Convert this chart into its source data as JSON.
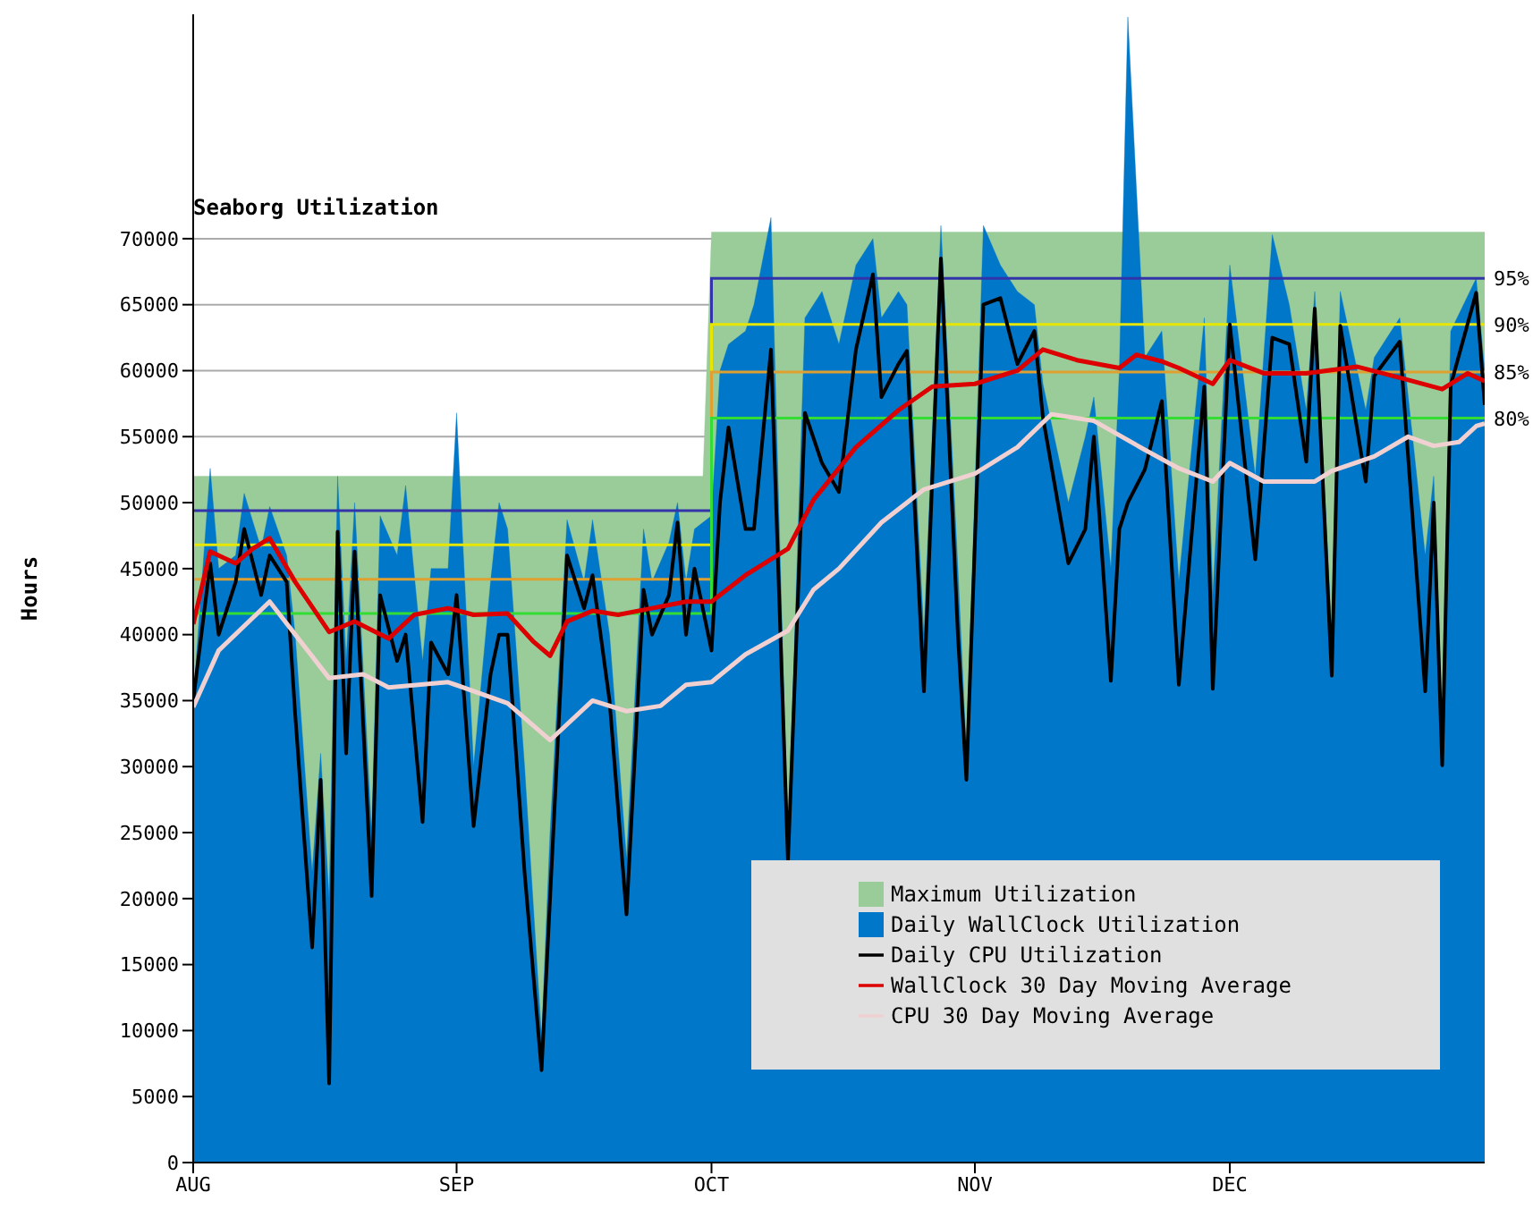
{
  "chart_data": {
    "type": "line",
    "title": "Seaborg Utilization",
    "ylabel": "Hours",
    "x": [
      "--08-01",
      "--08-03",
      "--08-04",
      "--08-06",
      "--08-07",
      "--08-09",
      "--08-10",
      "--08-12",
      "--08-13",
      "--08-15",
      "--08-16",
      "--08-17",
      "--08-18",
      "--08-19",
      "--08-20",
      "--08-22",
      "--08-23",
      "--08-25",
      "--08-26",
      "--08-28",
      "--08-29",
      "--08-31",
      "--09-01",
      "--09-03",
      "--09-05",
      "--09-06",
      "--09-07",
      "--09-09",
      "--09-11",
      "--09-12",
      "--09-14",
      "--09-16",
      "--09-17",
      "--09-19",
      "--09-21",
      "--09-23",
      "--09-24",
      "--09-26",
      "--09-27",
      "--09-28",
      "--09-29",
      "--10-01",
      "--10-02",
      "--10-03",
      "--10-05",
      "--10-06",
      "--10-08",
      "--10-10",
      "--10-12",
      "--10-14",
      "--10-16",
      "--10-18",
      "--10-20",
      "--10-21",
      "--10-23",
      "--10-24",
      "--10-26",
      "--10-28",
      "--10-30",
      "--10-31",
      "--11-02",
      "--11-04",
      "--11-06",
      "--11-08",
      "--11-09",
      "--11-12",
      "--11-14",
      "--11-15",
      "--11-17",
      "--11-18",
      "--11-19",
      "--11-21",
      "--11-23",
      "--11-25",
      "--11-28",
      "--11-29",
      "--12-01",
      "--12-04",
      "--12-06",
      "--12-08",
      "--12-10",
      "--12-11",
      "--12-13",
      "--12-14",
      "--12-17",
      "--12-18",
      "--12-21",
      "--12-24",
      "--12-25",
      "--12-26",
      "--12-27",
      "--12-30",
      "--12-31"
    ],
    "series": [
      {
        "name": "Maximum Utilization",
        "type": "area",
        "color": "#99cc99",
        "x": [
          "--08-01",
          "--09-30",
          "--10-01",
          "--12-31"
        ],
        "values": [
          52000,
          52000,
          70500,
          70500
        ]
      },
      {
        "name": "Daily WallClock Utilization",
        "type": "area",
        "color": "#0077c8",
        "values": [
          35000,
          52600,
          45000,
          46000,
          50700,
          46500,
          49700,
          46000,
          40000,
          22000,
          31000,
          20000,
          52000,
          38000,
          50000,
          25000,
          49000,
          46000,
          51300,
          38000,
          45000,
          45000,
          56800,
          30000,
          44000,
          50000,
          48000,
          30000,
          9500,
          25000,
          48700,
          44000,
          48700,
          40000,
          23000,
          48000,
          44000,
          47000,
          50000,
          44000,
          48000,
          49000,
          60000,
          62000,
          63000,
          65000,
          71600,
          24000,
          64000,
          66000,
          62000,
          68000,
          70000,
          64000,
          66000,
          65000,
          40000,
          71000,
          45000,
          31000,
          71000,
          68000,
          66000,
          65000,
          59000,
          50000,
          55000,
          58000,
          45000,
          60000,
          86800,
          61000,
          63000,
          44000,
          64000,
          43000,
          68000,
          52000,
          70300,
          65000,
          57000,
          66000,
          40000,
          66000,
          57000,
          61000,
          64000,
          46000,
          52000,
          33000,
          63000,
          67000,
          60000
        ]
      },
      {
        "name": "95%",
        "type": "step",
        "color": "#3333aa",
        "x": [
          "--08-01",
          "--10-01",
          "--12-31"
        ],
        "values": [
          49400,
          67000,
          67000
        ]
      },
      {
        "name": "90%",
        "type": "step",
        "color": "#e6e600",
        "x": [
          "--08-01",
          "--10-01",
          "--12-31"
        ],
        "values": [
          46800,
          63500,
          63500
        ]
      },
      {
        "name": "85%",
        "type": "step",
        "color": "#e0a030",
        "x": [
          "--08-01",
          "--10-01",
          "--12-31"
        ],
        "values": [
          44200,
          59900,
          59900
        ]
      },
      {
        "name": "80%",
        "type": "step",
        "color": "#33dd33",
        "x": [
          "--08-01",
          "--10-01",
          "--12-31"
        ],
        "values": [
          41600,
          56400,
          56400
        ]
      },
      {
        "name": "Daily CPU Utilization",
        "color": "#000000",
        "values": [
          35000,
          45400,
          40000,
          44000,
          48000,
          43000,
          46000,
          44000,
          34000,
          16300,
          29000,
          6000,
          47800,
          31000,
          46300,
          20200,
          43000,
          38000,
          40000,
          25800,
          39400,
          37000,
          43000,
          25500,
          37000,
          40000,
          40000,
          22000,
          7000,
          20000,
          46000,
          42000,
          44500,
          35000,
          18800,
          43400,
          40000,
          43000,
          48500,
          40000,
          45000,
          38800,
          50000,
          55700,
          48000,
          48000,
          61600,
          22800,
          56800,
          53000,
          50800,
          61600,
          67300,
          58000,
          60500,
          61500,
          35700,
          68500,
          40000,
          29000,
          65000,
          65500,
          60500,
          63000,
          56500,
          45400,
          48000,
          55000,
          36500,
          48000,
          50000,
          52500,
          57700,
          36200,
          58800,
          35900,
          63500,
          45700,
          62500,
          62000,
          53100,
          64700,
          36900,
          63400,
          51600,
          59600,
          62200,
          35700,
          50000,
          30100,
          58900,
          65900,
          57400
        ]
      },
      {
        "name": "WallClock 30 Day Moving Average",
        "color": "#dd0000",
        "x": [
          "--08-01",
          "--08-03",
          "--08-06",
          "--08-08",
          "--08-10",
          "--08-13",
          "--08-17",
          "--08-20",
          "--08-24",
          "--08-27",
          "--08-31",
          "--09-03",
          "--09-07",
          "--09-10",
          "--09-12",
          "--09-14",
          "--09-17",
          "--09-20",
          "--09-24",
          "--09-28",
          "--10-01",
          "--10-05",
          "--10-10",
          "--10-13",
          "--10-18",
          "--10-23",
          "--10-27",
          "--11-01",
          "--11-06",
          "--11-09",
          "--11-13",
          "--11-18",
          "--11-20",
          "--11-23",
          "--11-25",
          "--11-29",
          "--12-01",
          "--12-05",
          "--12-10",
          "--12-16",
          "--12-22",
          "--12-26",
          "--12-29",
          "--12-31"
        ],
        "values": [
          40800,
          46300,
          45400,
          46500,
          47300,
          44000,
          40200,
          41000,
          39700,
          41500,
          42000,
          41500,
          41600,
          39500,
          38400,
          41000,
          41800,
          41500,
          42000,
          42500,
          42500,
          44500,
          46500,
          50200,
          54200,
          57000,
          58800,
          59000,
          60000,
          61600,
          60800,
          60200,
          61200,
          60700,
          60200,
          59000,
          60800,
          59800,
          59800,
          60300,
          59300,
          58600,
          59800,
          59200
        ]
      },
      {
        "name": "CPU 30 Day Moving Average",
        "color": "#f0d0d0",
        "x": [
          "--08-01",
          "--08-04",
          "--08-10",
          "--08-17",
          "--08-21",
          "--08-24",
          "--08-31",
          "--09-07",
          "--09-12",
          "--09-17",
          "--09-21",
          "--09-25",
          "--09-28",
          "--10-01",
          "--10-05",
          "--10-10",
          "--10-13",
          "--10-16",
          "--10-21",
          "--10-26",
          "--11-01",
          "--11-06",
          "--11-10",
          "--11-15",
          "--11-21",
          "--11-25",
          "--11-29",
          "--12-01",
          "--12-05",
          "--12-11",
          "--12-13",
          "--12-18",
          "--12-22",
          "--12-25",
          "--12-28",
          "--12-30",
          "--12-31"
        ],
        "values": [
          34500,
          38800,
          42500,
          36700,
          37000,
          36000,
          36400,
          34800,
          32000,
          35000,
          34200,
          34600,
          36200,
          36400,
          38500,
          40300,
          43400,
          45000,
          48500,
          51000,
          52200,
          54200,
          56700,
          56200,
          54000,
          52600,
          51600,
          53000,
          51600,
          51600,
          52400,
          53500,
          55000,
          54300,
          54600,
          55800,
          56000
        ]
      }
    ],
    "xlim": [
      "--08-01",
      "--12-31"
    ],
    "xticks": [
      {
        "value": "--08-01",
        "label": "AUG"
      },
      {
        "value": "--09-01",
        "label": "SEP"
      },
      {
        "value": "--10-01",
        "label": "OCT"
      },
      {
        "value": "--11-01",
        "label": "NOV"
      },
      {
        "value": "--12-01",
        "label": "DEC"
      }
    ],
    "ylim": [
      0,
      87000
    ],
    "yticks": [
      0,
      5000,
      10000,
      15000,
      20000,
      25000,
      30000,
      35000,
      40000,
      45000,
      50000,
      55000,
      60000,
      65000,
      70000
    ],
    "grid": "y",
    "legend": "bottom right",
    "marker": "none",
    "line_style": "solid"
  }
}
